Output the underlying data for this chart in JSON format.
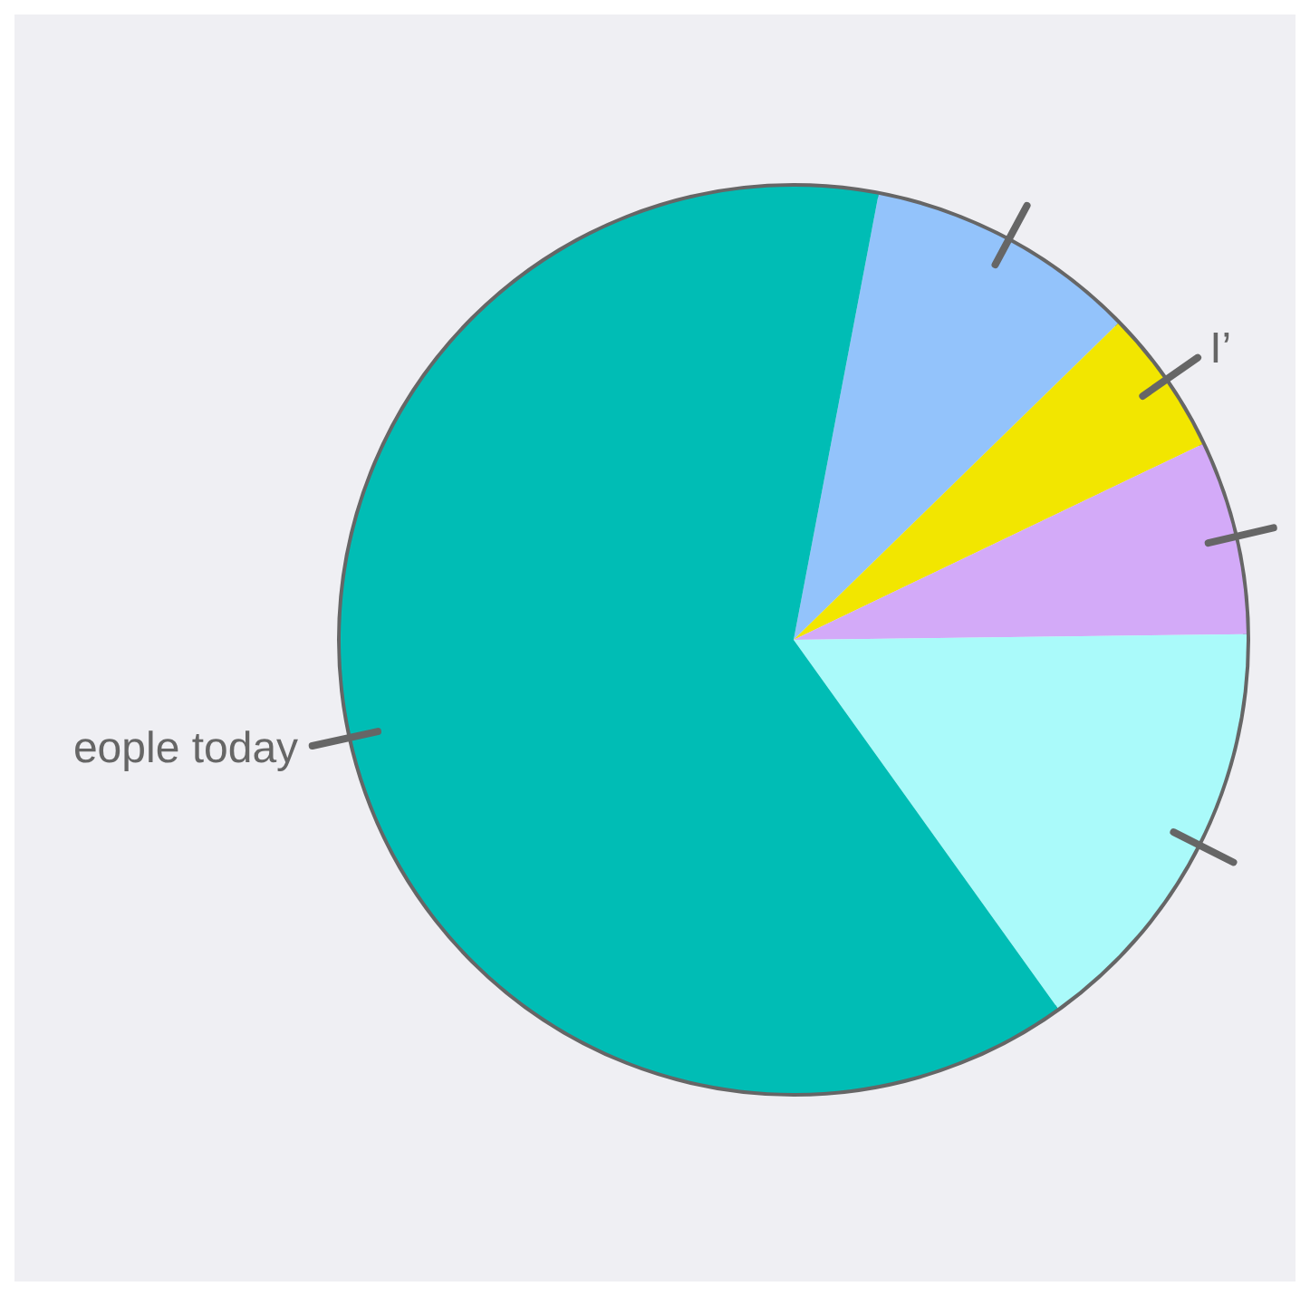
{
  "chart_data": {
    "type": "pie",
    "categories": [
      null,
      "I’",
      null,
      null,
      "eople today"
    ],
    "values": [
      9.7,
      5.2,
      6.9,
      15.3,
      62.9
    ],
    "colors": [
      "#93c3fb",
      "#f2e600",
      "#d3aaf8",
      "#aafafa",
      "#00bdb5"
    ]
  }
}
